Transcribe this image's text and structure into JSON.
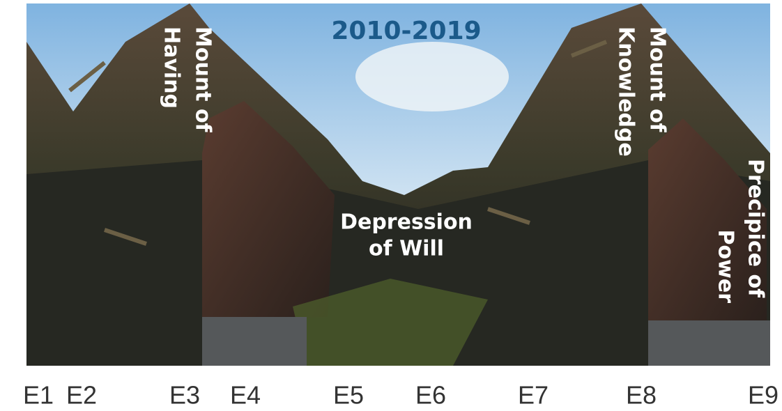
{
  "title": "2010-2019",
  "labels": [
    {
      "lines": [
        "Mount of",
        "Having"
      ]
    },
    {
      "lines": [
        "Mount of",
        "Knowledge"
      ]
    },
    {
      "lines": [
        "Precipice of",
        "Power"
      ]
    },
    {
      "lines": [
        "Depression",
        "of Will"
      ]
    }
  ],
  "axis": [
    "E1",
    "E2",
    "E3",
    "E4",
    "E5",
    "E6",
    "E7",
    "E8",
    "E9"
  ]
}
